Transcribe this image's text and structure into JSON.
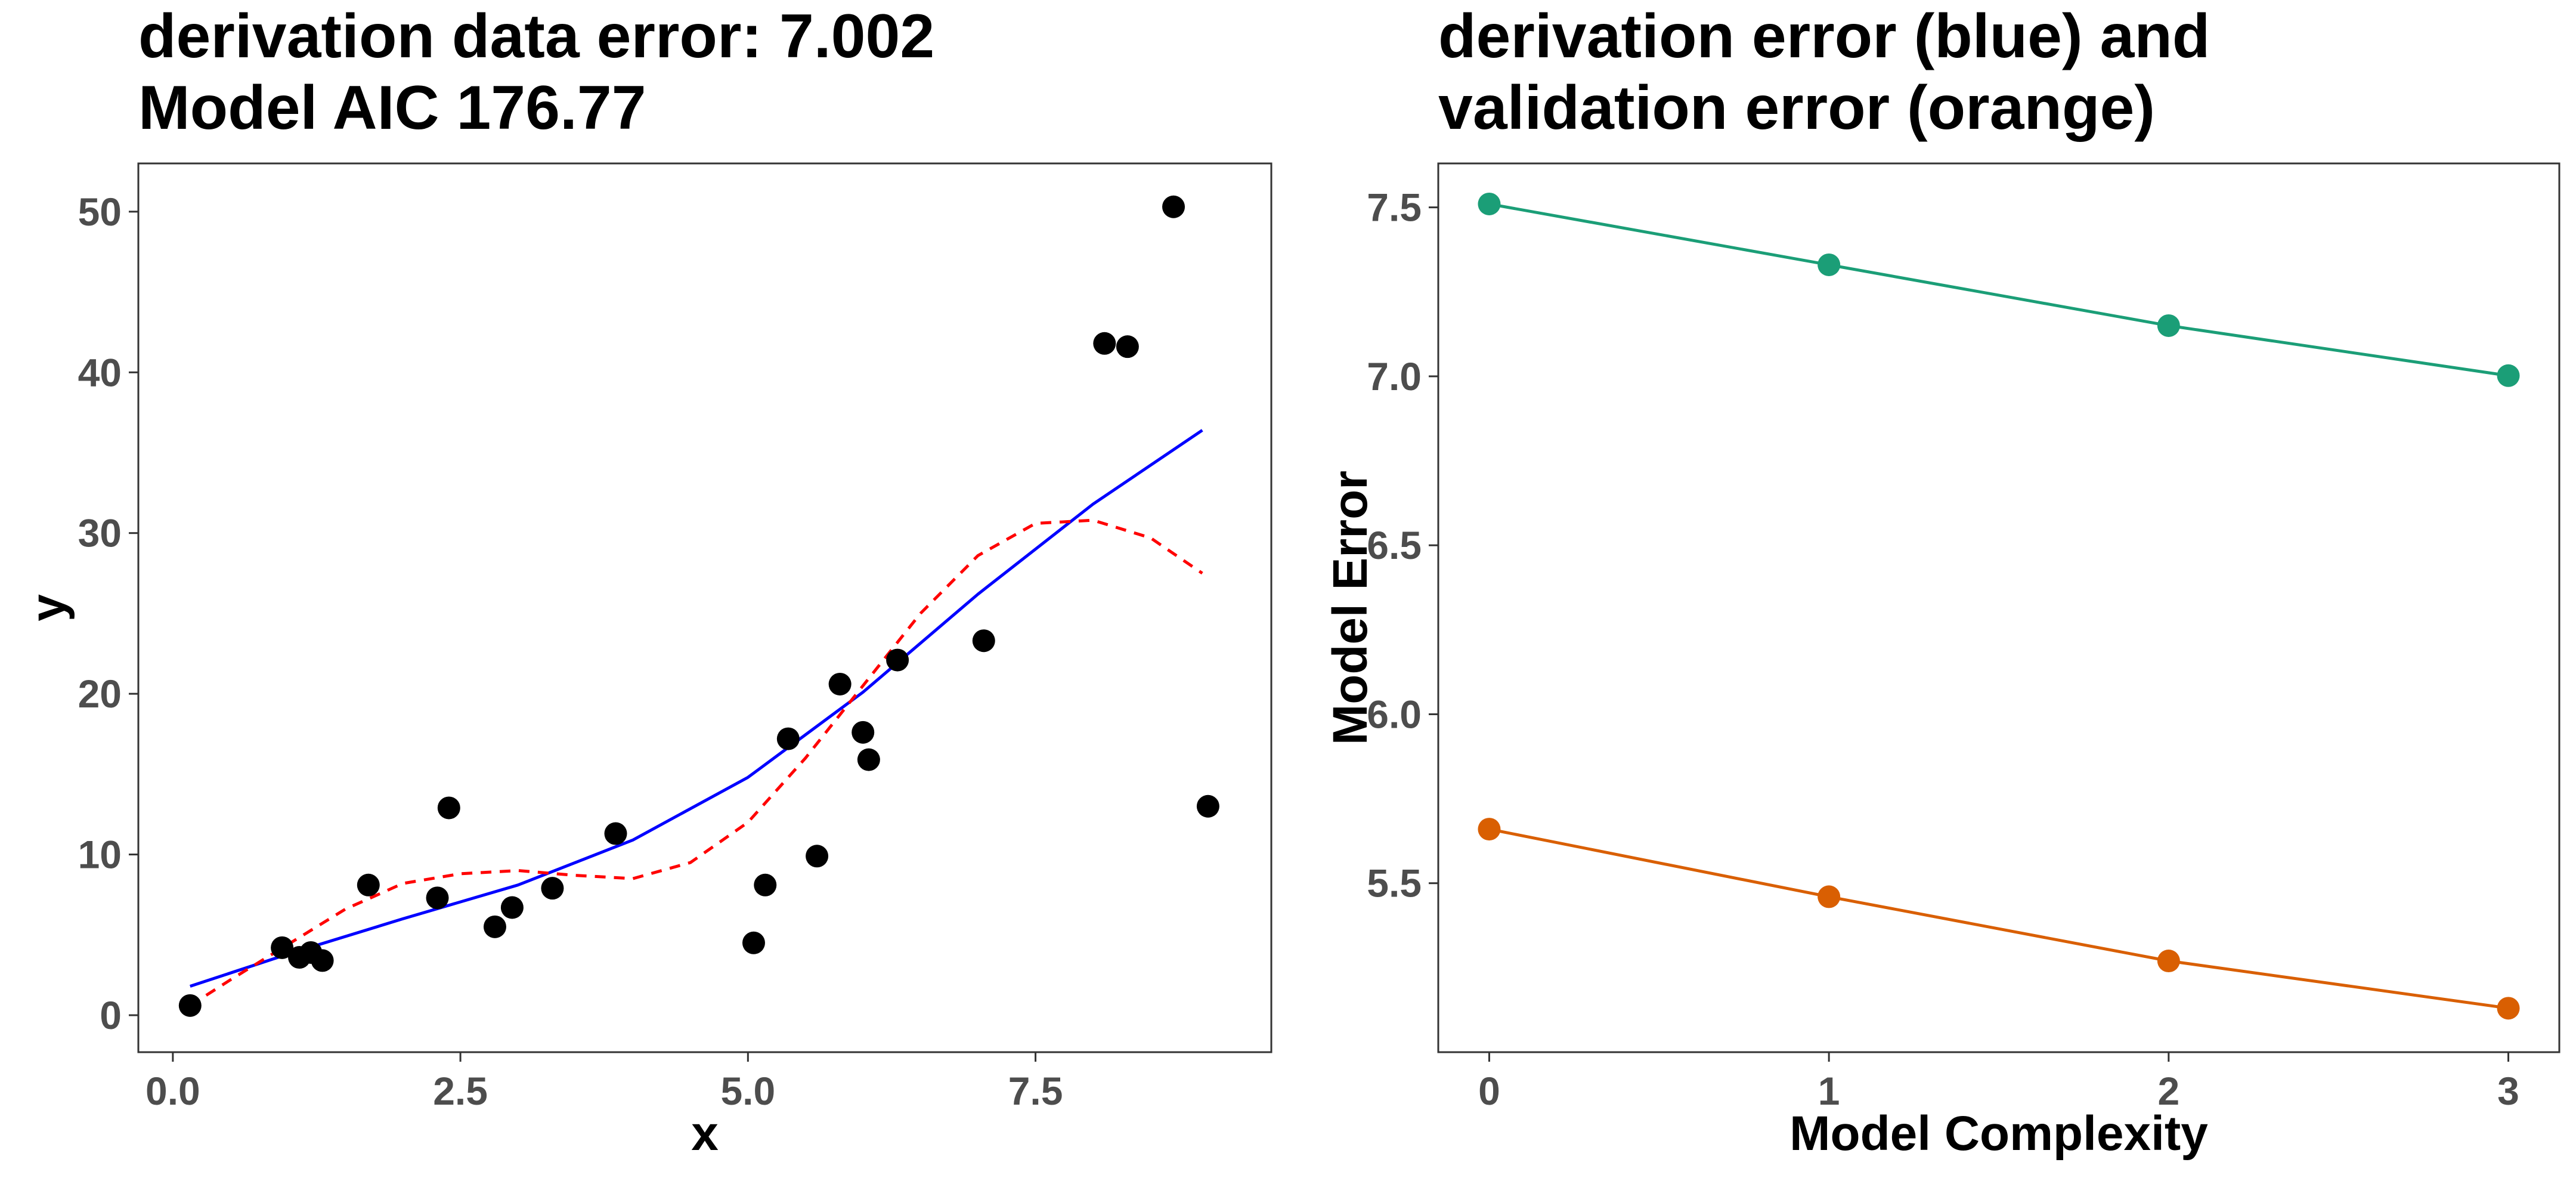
{
  "chart_data": [
    {
      "type": "scatter",
      "title_line1": "derivation data error: 7.002",
      "title_line2": "Model AIC 176.77",
      "xlabel": "x",
      "ylabel": "y",
      "xlim": [
        -0.3,
        9.55
      ],
      "ylim": [
        -2.3,
        53
      ],
      "x_ticks": [
        0,
        2.5,
        5,
        7.5
      ],
      "x_tick_labels": [
        "0.0",
        "2.5",
        "5.0",
        "7.5"
      ],
      "y_ticks": [
        0,
        10,
        20,
        30,
        40,
        50
      ],
      "y_tick_labels": [
        "0",
        "10",
        "20",
        "30",
        "40",
        "50"
      ],
      "grid": false,
      "points": [
        [
          0.15,
          0.6
        ],
        [
          0.95,
          4.2
        ],
        [
          1.1,
          3.6
        ],
        [
          1.2,
          3.9
        ],
        [
          1.3,
          3.4
        ],
        [
          1.7,
          8.1
        ],
        [
          2.3,
          7.3
        ],
        [
          2.4,
          12.9
        ],
        [
          2.8,
          5.5
        ],
        [
          2.95,
          6.7
        ],
        [
          3.3,
          7.9
        ],
        [
          3.85,
          11.3
        ],
        [
          5.05,
          4.5
        ],
        [
          5.15,
          8.1
        ],
        [
          5.35,
          17.2
        ],
        [
          5.6,
          9.9
        ],
        [
          5.8,
          20.6
        ],
        [
          6.0,
          17.6
        ],
        [
          6.05,
          15.9
        ],
        [
          6.3,
          22.1
        ],
        [
          7.05,
          23.3
        ],
        [
          8.1,
          41.8
        ],
        [
          8.3,
          41.6
        ],
        [
          8.7,
          50.3
        ],
        [
          9.0,
          13.0
        ]
      ],
      "series": [
        {
          "style": "solid",
          "color": "#0000ff",
          "x": [
            0.15,
            1.0,
            2.0,
            3.0,
            4.0,
            5.0,
            6.0,
            7.0,
            8.0,
            8.95
          ],
          "y": [
            1.8,
            3.8,
            6.0,
            8.1,
            10.9,
            14.8,
            20.1,
            26.2,
            31.8,
            36.4
          ]
        },
        {
          "style": "dashed",
          "color": "#ff0000",
          "x": [
            0.15,
            0.5,
            1.0,
            1.5,
            2.0,
            2.5,
            3.0,
            3.5,
            4.0,
            4.5,
            5.0,
            5.5,
            6.0,
            6.5,
            7.0,
            7.5,
            8.0,
            8.5,
            8.95
          ],
          "y": [
            0.6,
            2.2,
            4.4,
            6.6,
            8.2,
            8.8,
            9.0,
            8.7,
            8.5,
            9.5,
            12.0,
            16.0,
            20.5,
            25.0,
            28.6,
            30.6,
            30.8,
            29.7,
            27.5
          ]
        }
      ]
    },
    {
      "type": "line",
      "title_line1": "derivation error (blue) and",
      "title_line2": "validation error (orange)",
      "xlabel": "Model Complexity",
      "ylabel": "Model Error",
      "xlim": [
        -0.15,
        3.15
      ],
      "ylim": [
        5.0,
        7.63
      ],
      "x_ticks": [
        0,
        1,
        2,
        3
      ],
      "x_tick_labels": [
        "0",
        "1",
        "2",
        "3"
      ],
      "y_ticks": [
        5.5,
        6.0,
        6.5,
        7.0,
        7.5
      ],
      "y_tick_labels": [
        "5.5",
        "6.0",
        "6.5",
        "7.0",
        "7.5"
      ],
      "grid": false,
      "series": [
        {
          "color": "#1b9e77",
          "x": [
            0,
            1,
            2,
            3
          ],
          "y": [
            7.51,
            7.33,
            7.15,
            7.002
          ]
        },
        {
          "color": "#d95f02",
          "x": [
            0,
            1,
            2,
            3
          ],
          "y": [
            5.66,
            5.46,
            5.27,
            5.13
          ]
        }
      ]
    }
  ]
}
